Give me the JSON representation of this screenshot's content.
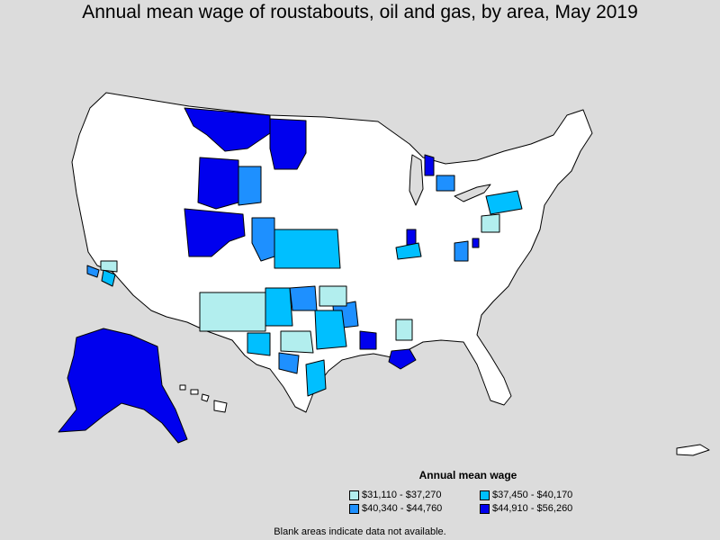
{
  "title": "Annual mean wage of roustabouts, oil and gas, by area, May 2019",
  "legend": {
    "title": "Annual mean wage",
    "items": [
      {
        "label": "$31,110 - $37,270",
        "color": "#b2eeee"
      },
      {
        "label": "$37,450 - $40,170",
        "color": "#00bfff"
      },
      {
        "label": "$40,340 - $44,760",
        "color": "#1e90ff"
      },
      {
        "label": "$44,910 - $56,260",
        "color": "#0000ee"
      }
    ]
  },
  "footnote": "Blank areas indicate data not available.",
  "colors": {
    "background": "#dcdcdc",
    "no_data": "#ffffff",
    "border": "#000000"
  }
}
